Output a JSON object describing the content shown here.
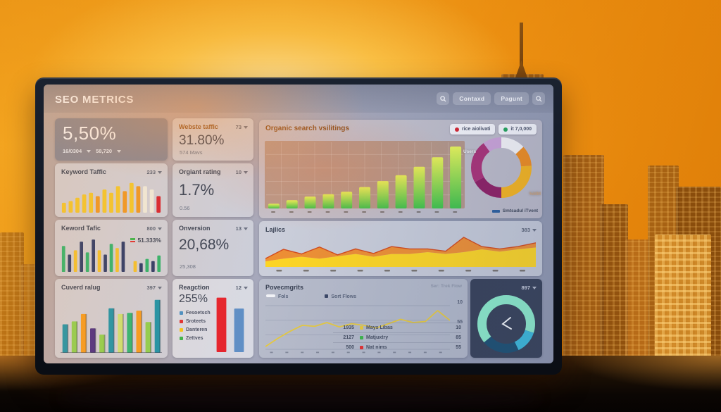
{
  "header": {
    "title": "SEO METRICS",
    "buttons": [
      {
        "label": "Contaxd"
      },
      {
        "label": "Pagunt"
      }
    ]
  },
  "cards": {
    "overview": {
      "value": "5,50%",
      "stat1": "16/0304",
      "stat2": "58,720"
    },
    "website_traffic": {
      "title": "Webste taffic",
      "dropdown": "73",
      "value": "31.80%",
      "sub": "574 Mavs"
    },
    "organic": {
      "title": "Organic search vsilitings",
      "badge1": "rice aiolivati",
      "badge2": "it 7,0,000",
      "donut_label_left": "Users",
      "donut_label_right": "%MM",
      "legend": "Smtsadul iTvent"
    },
    "keyword_taffic": {
      "title": "Keyword Taffic",
      "dropdown": "233"
    },
    "organt_rating": {
      "title": "Orgiant rating",
      "dropdown": "10",
      "value": "1.7%",
      "sub": "0.56"
    },
    "keword_tafic": {
      "title": "Keword Tafic",
      "dropdown": "800",
      "badge": "51.333%"
    },
    "conversion": {
      "title": "Onversion",
      "dropdown": "13",
      "value": "20,68%",
      "sub": "25,308"
    },
    "lajlics": {
      "title": "Lajlics",
      "dropdown": "383"
    },
    "cuverd_ralug": {
      "title": "Cuverd ralug",
      "dropdown": "397"
    },
    "reagction": {
      "title": "Reagction",
      "dropdown": "12",
      "value": "255%",
      "legend": [
        {
          "label": "Fesoetsch",
          "color": "#4a90c4"
        },
        {
          "label": "Sroteets",
          "color": "#e03131"
        },
        {
          "label": "Danteren",
          "color": "#f5c518"
        },
        {
          "label": "Zettves",
          "color": "#3cb54a"
        }
      ]
    },
    "povecmgrits": {
      "title": "Povecmgrits",
      "hint": "Ser: Trek Flow",
      "legend1": "Fols",
      "legend2": "Sort Flows",
      "axis_top": "10",
      "axis_mid": "55",
      "rows": [
        {
          "num": "1935",
          "label": "Mays Libas",
          "value": "10",
          "color": "#e6c93f"
        },
        {
          "num": "2127",
          "label": "Matjuxtry",
          "value": "85",
          "color": "#3cb54a"
        },
        {
          "num": "500",
          "label": "Nat nims",
          "value": "55",
          "color": "#e03131"
        }
      ]
    },
    "gauge": {
      "dropdown": "897"
    }
  },
  "chart_data": [
    {
      "id": "organic",
      "type": "bar",
      "max": 55,
      "rx": 2,
      "bar_ratio": 0.62,
      "gradient": [
        "#e9f558",
        "#3fc24b"
      ],
      "plot_bg": "rgba(166,98,48,0.42)",
      "grid": "rgba(255,255,255,0.30)",
      "xticks": 11,
      "bars": [
        {
          "v": 4
        },
        {
          "v": 7
        },
        {
          "v": 10
        },
        {
          "v": 12
        },
        {
          "v": 14
        },
        {
          "v": 18
        },
        {
          "v": 23
        },
        {
          "v": 28
        },
        {
          "v": 35
        },
        {
          "v": 43
        },
        {
          "v": 52
        }
      ]
    },
    {
      "id": "donut-top",
      "type": "donut",
      "stroke": 15,
      "segments": [
        {
          "v": 13,
          "c": "#f4f3f6"
        },
        {
          "v": 11,
          "c": "#ef8c1e"
        },
        {
          "v": 26,
          "c": "#f6b41d"
        },
        {
          "v": 17,
          "c": "#8e2064"
        },
        {
          "v": 23,
          "c": "#a93277"
        },
        {
          "v": 10,
          "c": "#cba3d7"
        }
      ]
    },
    {
      "id": "keyword-taffic",
      "type": "bar",
      "max": 10,
      "rx": 1.5,
      "bar_ratio": 0.6,
      "bars": [
        {
          "v": 3,
          "c": "#f3c62b"
        },
        {
          "v": 3.5,
          "c": "#f3c62b"
        },
        {
          "v": 4.5,
          "c": "#f3c62b"
        },
        {
          "v": 5.5,
          "c": "#f3c62b"
        },
        {
          "v": 6,
          "c": "#f3c62b"
        },
        {
          "v": 5,
          "c": "#ee9722"
        },
        {
          "v": 7,
          "c": "#f3c62b"
        },
        {
          "v": 6,
          "c": "#f3c62b"
        },
        {
          "v": 8,
          "c": "#f3c62b"
        },
        {
          "v": 6.5,
          "c": "#ee9722"
        },
        {
          "v": 9,
          "c": "#f3c62b"
        },
        {
          "v": 8,
          "c": "#ee9722"
        },
        {
          "v": 8,
          "c": "#efeadb"
        },
        {
          "v": 7,
          "c": "#efeadb"
        },
        {
          "v": 5,
          "c": "#d7242f"
        }
      ]
    },
    {
      "id": "keword-tafic",
      "type": "bar",
      "max": 8,
      "rx": 1,
      "bar_ratio": 0.55,
      "bars": [
        {
          "v": 6,
          "c": "#2fb36b"
        },
        {
          "v": 4,
          "c": "#2c3a68"
        },
        {
          "v": 5,
          "c": "#f3c02b"
        },
        {
          "v": 7,
          "c": "#2c3a68"
        },
        {
          "v": 4.5,
          "c": "#2fb36b"
        },
        {
          "v": 7.5,
          "c": "#2c3a68"
        },
        {
          "v": 5,
          "c": "#f3c02b"
        },
        {
          "v": 4,
          "c": "#2c3a68"
        },
        {
          "v": 6.5,
          "c": "#2fb36b"
        },
        {
          "v": 5.5,
          "c": "#f3c02b"
        },
        {
          "v": 7,
          "c": "#2c3a68"
        },
        {
          "v": 0
        },
        {
          "v": 2.5,
          "c": "#f3c02b"
        },
        {
          "v": 2,
          "c": "#2c3a68"
        },
        {
          "v": 3,
          "c": "#2fb36b"
        },
        {
          "v": 2.5,
          "c": "#2c3a68"
        },
        {
          "v": 3.8,
          "c": "#2fb36b"
        }
      ]
    },
    {
      "id": "lajlics",
      "type": "area",
      "max": 7,
      "stroke": "#d34a1c",
      "fill_lower": "#ffd51a",
      "fill_upper": "#ef8b2b",
      "xticks": 10,
      "lower": [
        1.2,
        1.8,
        2.2,
        1.8,
        2.3,
        2.8,
        2.2,
        2.8,
        2.8,
        3.2,
        2.8,
        3.2,
        3.8,
        3.3,
        3.8,
        4.2
      ],
      "upper": [
        1.8,
        3.8,
        2.8,
        4.3,
        2.6,
        3.9,
        2.9,
        4.4,
        3.9,
        3.9,
        3.4,
        6.4,
        4.4,
        3.9,
        4.4,
        5.2
      ]
    },
    {
      "id": "cuverd",
      "type": "bar",
      "max": 10,
      "rx": 1,
      "bar_ratio": 0.58,
      "side": true,
      "baseline": "rgba(60,70,90,0.5)",
      "bars": [
        {
          "v": 5,
          "c": "#1d93a8"
        },
        {
          "v": 5.5,
          "c": "#8fcf4e"
        },
        {
          "v": 6.8,
          "c": "#f59b1e"
        },
        {
          "v": 4.3,
          "c": "#4b2e83"
        },
        {
          "v": 3.2,
          "c": "#8fcf4e"
        },
        {
          "v": 7.8,
          "c": "#1d93a8"
        },
        {
          "v": 6.8,
          "c": "#cde070"
        },
        {
          "v": 7,
          "c": "#2eb573"
        },
        {
          "v": 7.4,
          "c": "#f59b1e"
        },
        {
          "v": 5.4,
          "c": "#8fcf4e"
        },
        {
          "v": 9.3,
          "c": "#1d93a8"
        }
      ]
    },
    {
      "id": "reagction",
      "type": "bar",
      "max": 115,
      "rx": 1,
      "bar_ratio": 0.55,
      "bars": [
        {
          "v": 100,
          "c": "#e5242d"
        },
        {
          "v": 80,
          "c": "#5f8fc6"
        }
      ]
    },
    {
      "id": "povecmgrits",
      "type": "line",
      "max": 8,
      "color": "#e6c93f",
      "grid": "rgba(110,120,145,0.40)",
      "xticks": 12,
      "values": [
        0.5,
        2,
        3.3,
        4.4,
        4.2,
        4.9,
        4.1,
        4.7,
        4.4,
        3.9,
        4.7,
        5.5,
        4.9,
        5.1,
        7.1,
        5.3
      ]
    },
    {
      "id": "gauge",
      "type": "donut",
      "stroke": 13,
      "chevron": true,
      "segments": [
        {
          "v": 30,
          "c": "#8ceac9"
        },
        {
          "v": 13,
          "c": "#3cb8d9"
        },
        {
          "v": 21,
          "c": "#1d4f70"
        },
        {
          "v": 36,
          "c": "#8ceac9"
        }
      ]
    }
  ]
}
